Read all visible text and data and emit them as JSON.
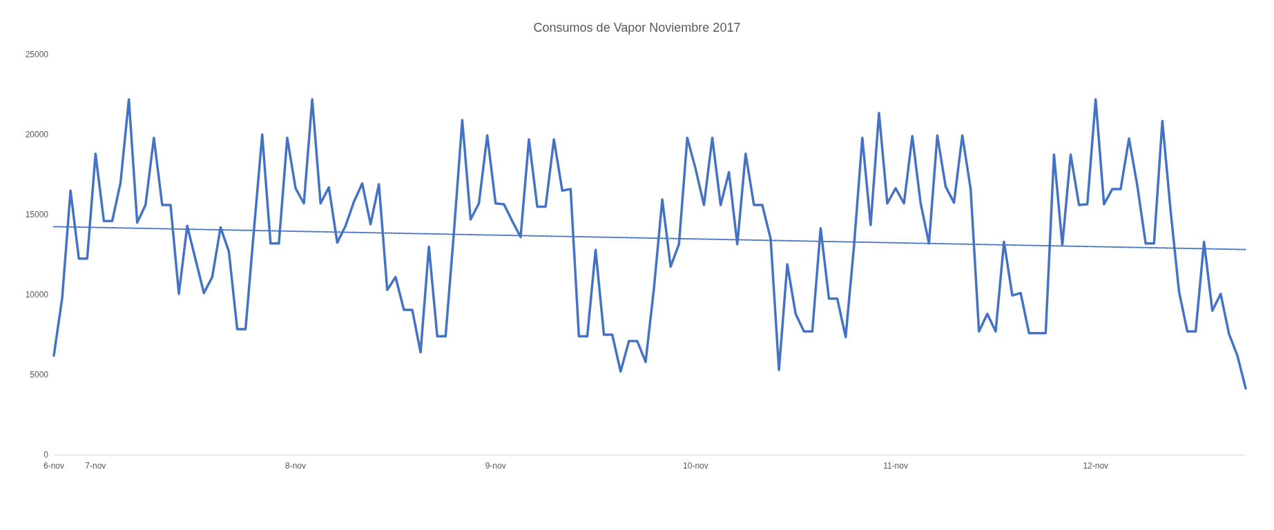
{
  "chart_data": {
    "type": "line",
    "title": "Consumos de Vapor Noviembre 2017",
    "categories": [
      "6-nov",
      null,
      null,
      null,
      null,
      "7-nov",
      null,
      null,
      null,
      null,
      null,
      null,
      null,
      null,
      null,
      null,
      null,
      null,
      null,
      null,
      null,
      null,
      null,
      null,
      null,
      null,
      null,
      null,
      null,
      "8-nov",
      null,
      null,
      null,
      null,
      null,
      null,
      null,
      null,
      null,
      null,
      null,
      null,
      null,
      null,
      null,
      null,
      null,
      null,
      null,
      null,
      null,
      null,
      null,
      "9-nov",
      null,
      null,
      null,
      null,
      null,
      null,
      null,
      null,
      null,
      null,
      null,
      null,
      null,
      null,
      null,
      null,
      null,
      null,
      null,
      null,
      null,
      null,
      null,
      "10-nov",
      null,
      null,
      null,
      null,
      null,
      null,
      null,
      null,
      null,
      null,
      null,
      null,
      null,
      null,
      null,
      null,
      null,
      null,
      null,
      null,
      null,
      null,
      null,
      "11-nov",
      null,
      null,
      null,
      null,
      null,
      null,
      null,
      null,
      null,
      null,
      null,
      null,
      null,
      null,
      null,
      null,
      null,
      null,
      null,
      null,
      null,
      null,
      null,
      "12-nov",
      null,
      null,
      null,
      null,
      null,
      null,
      null,
      null,
      null,
      null,
      null,
      null,
      null,
      null,
      null,
      null,
      null,
      null
    ],
    "ylim": [
      0,
      25000
    ],
    "yticks": [
      0,
      5000,
      10000,
      15000,
      20000,
      25000
    ],
    "grid": false,
    "marker": "none",
    "series": [
      {
        "color": "#4472c4",
        "line_style": "solid",
        "values": [
          6200,
          9800,
          16500,
          12250,
          12250,
          18800,
          14600,
          14600,
          17000,
          22200,
          14500,
          15600,
          19800,
          15600,
          15600,
          10050,
          14300,
          12200,
          10100,
          11100,
          14200,
          12700,
          7850,
          7850,
          14000,
          20000,
          13200,
          13200,
          19800,
          16650,
          15700,
          22200,
          15700,
          16700,
          13250,
          14300,
          15800,
          16950,
          14400,
          16900,
          10300,
          11100,
          9050,
          9050,
          6400,
          13000,
          7400,
          7400,
          13900,
          20900,
          14700,
          15700,
          19950,
          15700,
          15650,
          14600,
          13600,
          19700,
          15500,
          15500,
          19700,
          16500,
          16600,
          7400,
          7400,
          12800,
          7500,
          7500,
          5200,
          7100,
          7100,
          5800,
          10400,
          15950,
          11750,
          13150,
          19800,
          17850,
          15600,
          19800,
          15600,
          17650,
          13150,
          18800,
          15600,
          15600,
          13500,
          5300,
          11900,
          8800,
          7700,
          7700,
          14150,
          9750,
          9750,
          7350,
          13000,
          19800,
          14350,
          21350,
          15700,
          16650,
          15700,
          19900,
          15700,
          13200,
          19950,
          16750,
          15750,
          19950,
          16600,
          7700,
          8800,
          7700,
          13300,
          9950,
          10100,
          7600,
          7600,
          7600,
          18750,
          13100,
          18750,
          15600,
          15650,
          22200,
          15650,
          16600,
          16600,
          19750,
          16800,
          13200,
          13200,
          20850,
          15200,
          10200,
          7700,
          7700,
          13300,
          9000,
          10050,
          7550,
          6200,
          4150
        ]
      },
      {
        "type": "line",
        "color": "#4472c4",
        "line_style": "dotted",
        "values": [
          14250,
          14240,
          14230,
          14220,
          14210,
          14200,
          14190,
          14180,
          14170,
          14160,
          14150,
          14140,
          14130,
          14120,
          14110,
          14100,
          14090,
          14080,
          14070,
          14060,
          14050,
          14040,
          14030,
          14020,
          14010,
          14000,
          13990,
          13980,
          13970,
          13960,
          13950,
          13940,
          13930,
          13920,
          13910,
          13900,
          13890,
          13880,
          13870,
          13860,
          13850,
          13840,
          13830,
          13820,
          13810,
          13800,
          13790,
          13780,
          13770,
          13760,
          13750,
          13740,
          13730,
          13720,
          13710,
          13700,
          13690,
          13680,
          13670,
          13660,
          13650,
          13640,
          13630,
          13620,
          13610,
          13600,
          13590,
          13580,
          13570,
          13560,
          13550,
          13540,
          13530,
          13520,
          13510,
          13500,
          13490,
          13480,
          13470,
          13460,
          13450,
          13440,
          13430,
          13420,
          13410,
          13400,
          13390,
          13380,
          13370,
          13360,
          13350,
          13340,
          13330,
          13320,
          13310,
          13300,
          13290,
          13280,
          13270,
          13260,
          13250,
          13240,
          13230,
          13220,
          13210,
          13200,
          13190,
          13180,
          13170,
          13160,
          13150,
          13140,
          13130,
          13120,
          13110,
          13100,
          13090,
          13080,
          13070,
          13060,
          13050,
          13040,
          13030,
          13020,
          13010,
          13000,
          12990,
          12980,
          12970,
          12960,
          12950,
          12940,
          12930,
          12920,
          12910,
          12900,
          12890,
          12880,
          12870,
          12860,
          12850,
          12840,
          12830,
          12820
        ]
      }
    ]
  }
}
